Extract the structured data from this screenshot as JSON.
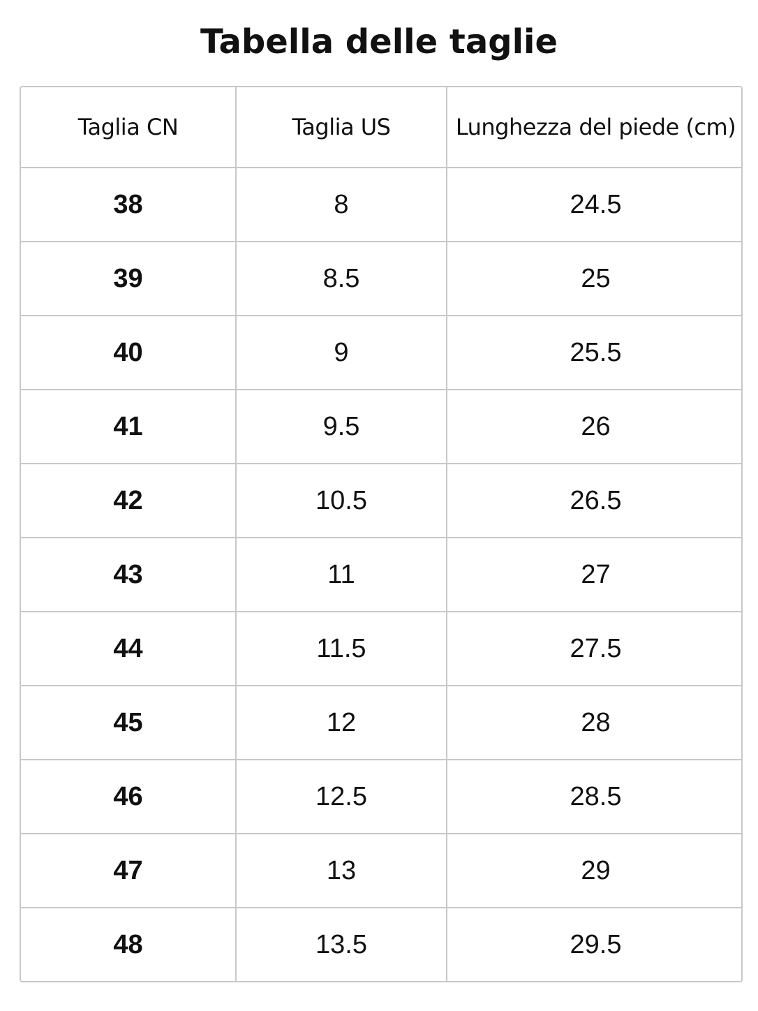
{
  "header": {
    "title": "Tabella delle taglie"
  },
  "table": {
    "columns": [
      "Taglia CN",
      "Taglia US",
      "Lunghezza del piede (cm)"
    ],
    "rows": [
      [
        38,
        8,
        24.5
      ],
      [
        39,
        8.5,
        25
      ],
      [
        40,
        9,
        25.5
      ],
      [
        41,
        9.5,
        26
      ],
      [
        42,
        10.5,
        26.5
      ],
      [
        43,
        11,
        27
      ],
      [
        44,
        11.5,
        27.5
      ],
      [
        45,
        12,
        28
      ],
      [
        46,
        12.5,
        28.5
      ],
      [
        47,
        13,
        29
      ],
      [
        48,
        13.5,
        29.5
      ]
    ]
  }
}
